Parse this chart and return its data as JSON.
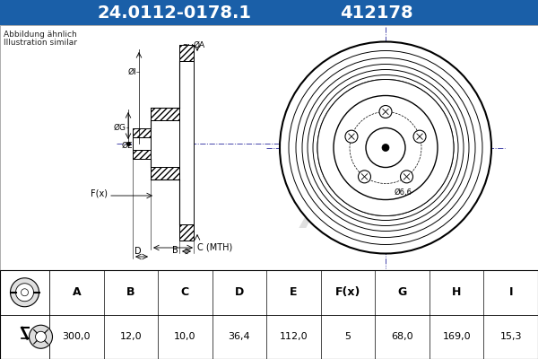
{
  "title_part_num": "24.0112-0178.1",
  "title_ref_num": "412178",
  "title_bg_color": "#1a5fa8",
  "title_text_color": "#ffffff",
  "subtitle_line1": "Abbildung ähnlich",
  "subtitle_line2": "Illustration similar",
  "bg_color": "#c8c8c8",
  "diagram_bg_color": "#ffffff",
  "table_headers": [
    "A",
    "B",
    "C",
    "D",
    "E",
    "F(x)",
    "G",
    "H",
    "I"
  ],
  "table_values": [
    "300,0",
    "12,0",
    "10,0",
    "36,4",
    "112,0",
    "5",
    "68,0",
    "169,0",
    "15,3"
  ],
  "watermark_color": "#cccccc",
  "center_line_color": "#4444aa",
  "line_color": "#000000"
}
